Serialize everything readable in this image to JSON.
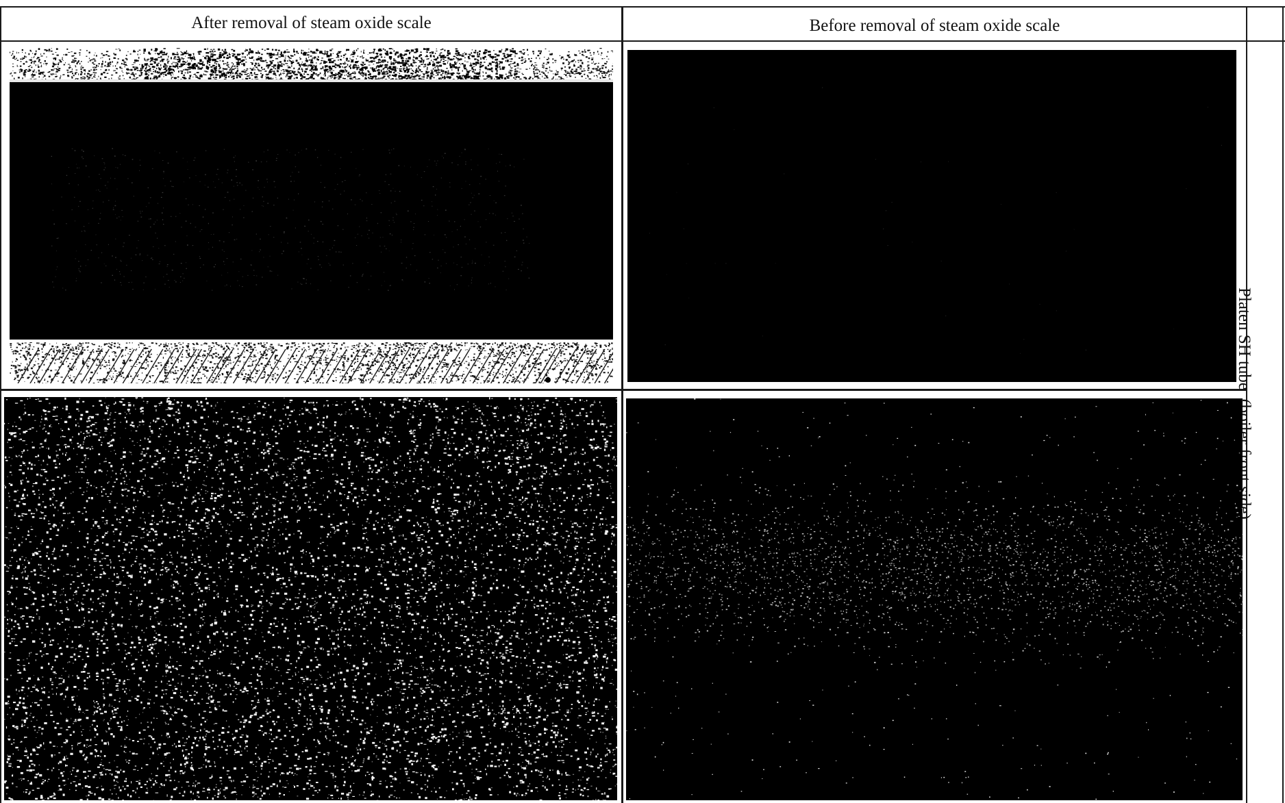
{
  "table": {
    "headers": [
      "After removal of steam oxide scale",
      "Before removal of steam oxide scale"
    ],
    "row_label": "Platen SH tube  (boiler front side)"
  },
  "photos": [
    {
      "name": "photo-after-overview",
      "content": "tube-overview"
    },
    {
      "name": "photo-before-overview",
      "content": "dark-scale"
    },
    {
      "name": "photo-after-closeup",
      "content": "speckled-surface"
    },
    {
      "name": "photo-before-closeup",
      "content": "sparse-speckle"
    }
  ]
}
